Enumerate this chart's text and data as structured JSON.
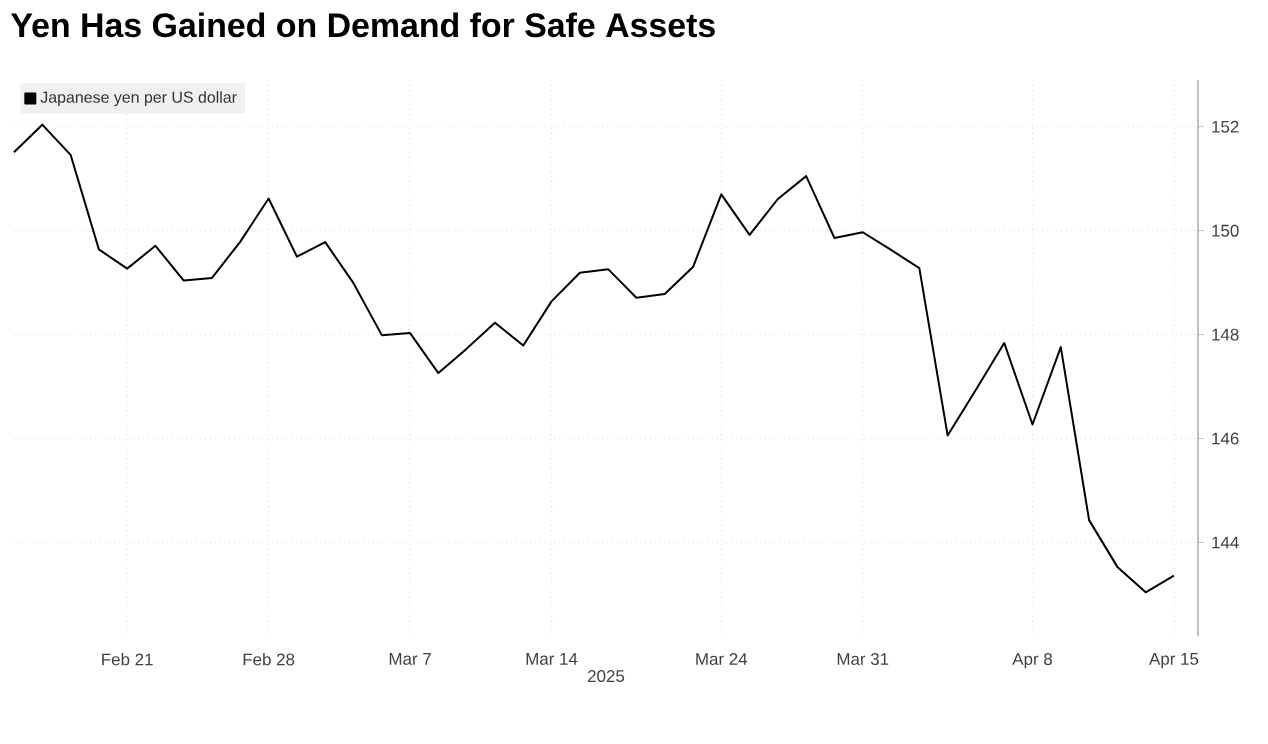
{
  "chart_data": {
    "type": "line",
    "title": "Yen Has Gained on Demand for Safe Assets",
    "xlabel": "2025",
    "categories": [
      null,
      null,
      null,
      null,
      "Feb 21",
      null,
      null,
      null,
      null,
      "Feb 28",
      null,
      null,
      null,
      null,
      "Mar 7",
      null,
      null,
      null,
      null,
      "Mar 14",
      null,
      null,
      null,
      null,
      null,
      "Mar 24",
      null,
      null,
      null,
      null,
      "Mar 31",
      null,
      null,
      null,
      null,
      null,
      "Apr 8",
      null,
      null,
      null,
      null,
      "Apr 15"
    ],
    "series": [
      {
        "name": "Japanese yen per US dollar",
        "color": "#000000",
        "values": [
          151.51,
          152.04,
          151.46,
          149.64,
          149.27,
          149.71,
          149.04,
          149.09,
          149.79,
          150.62,
          149.5,
          149.78,
          148.99,
          147.99,
          148.03,
          147.26,
          147.73,
          148.23,
          147.79,
          148.64,
          149.19,
          149.26,
          148.71,
          148.78,
          149.3,
          150.7,
          149.92,
          150.61,
          151.05,
          149.86,
          149.97,
          149.63,
          149.28,
          146.06,
          146.94,
          147.84,
          146.27,
          147.76,
          144.43,
          143.53,
          143.04,
          143.36
        ]
      }
    ],
    "ylim": [
      142.2,
      152.9
    ],
    "yticks": [
      144,
      146,
      148,
      150,
      152
    ],
    "grid": true,
    "legend": "top left",
    "marker": "none",
    "line_style": "solid"
  }
}
